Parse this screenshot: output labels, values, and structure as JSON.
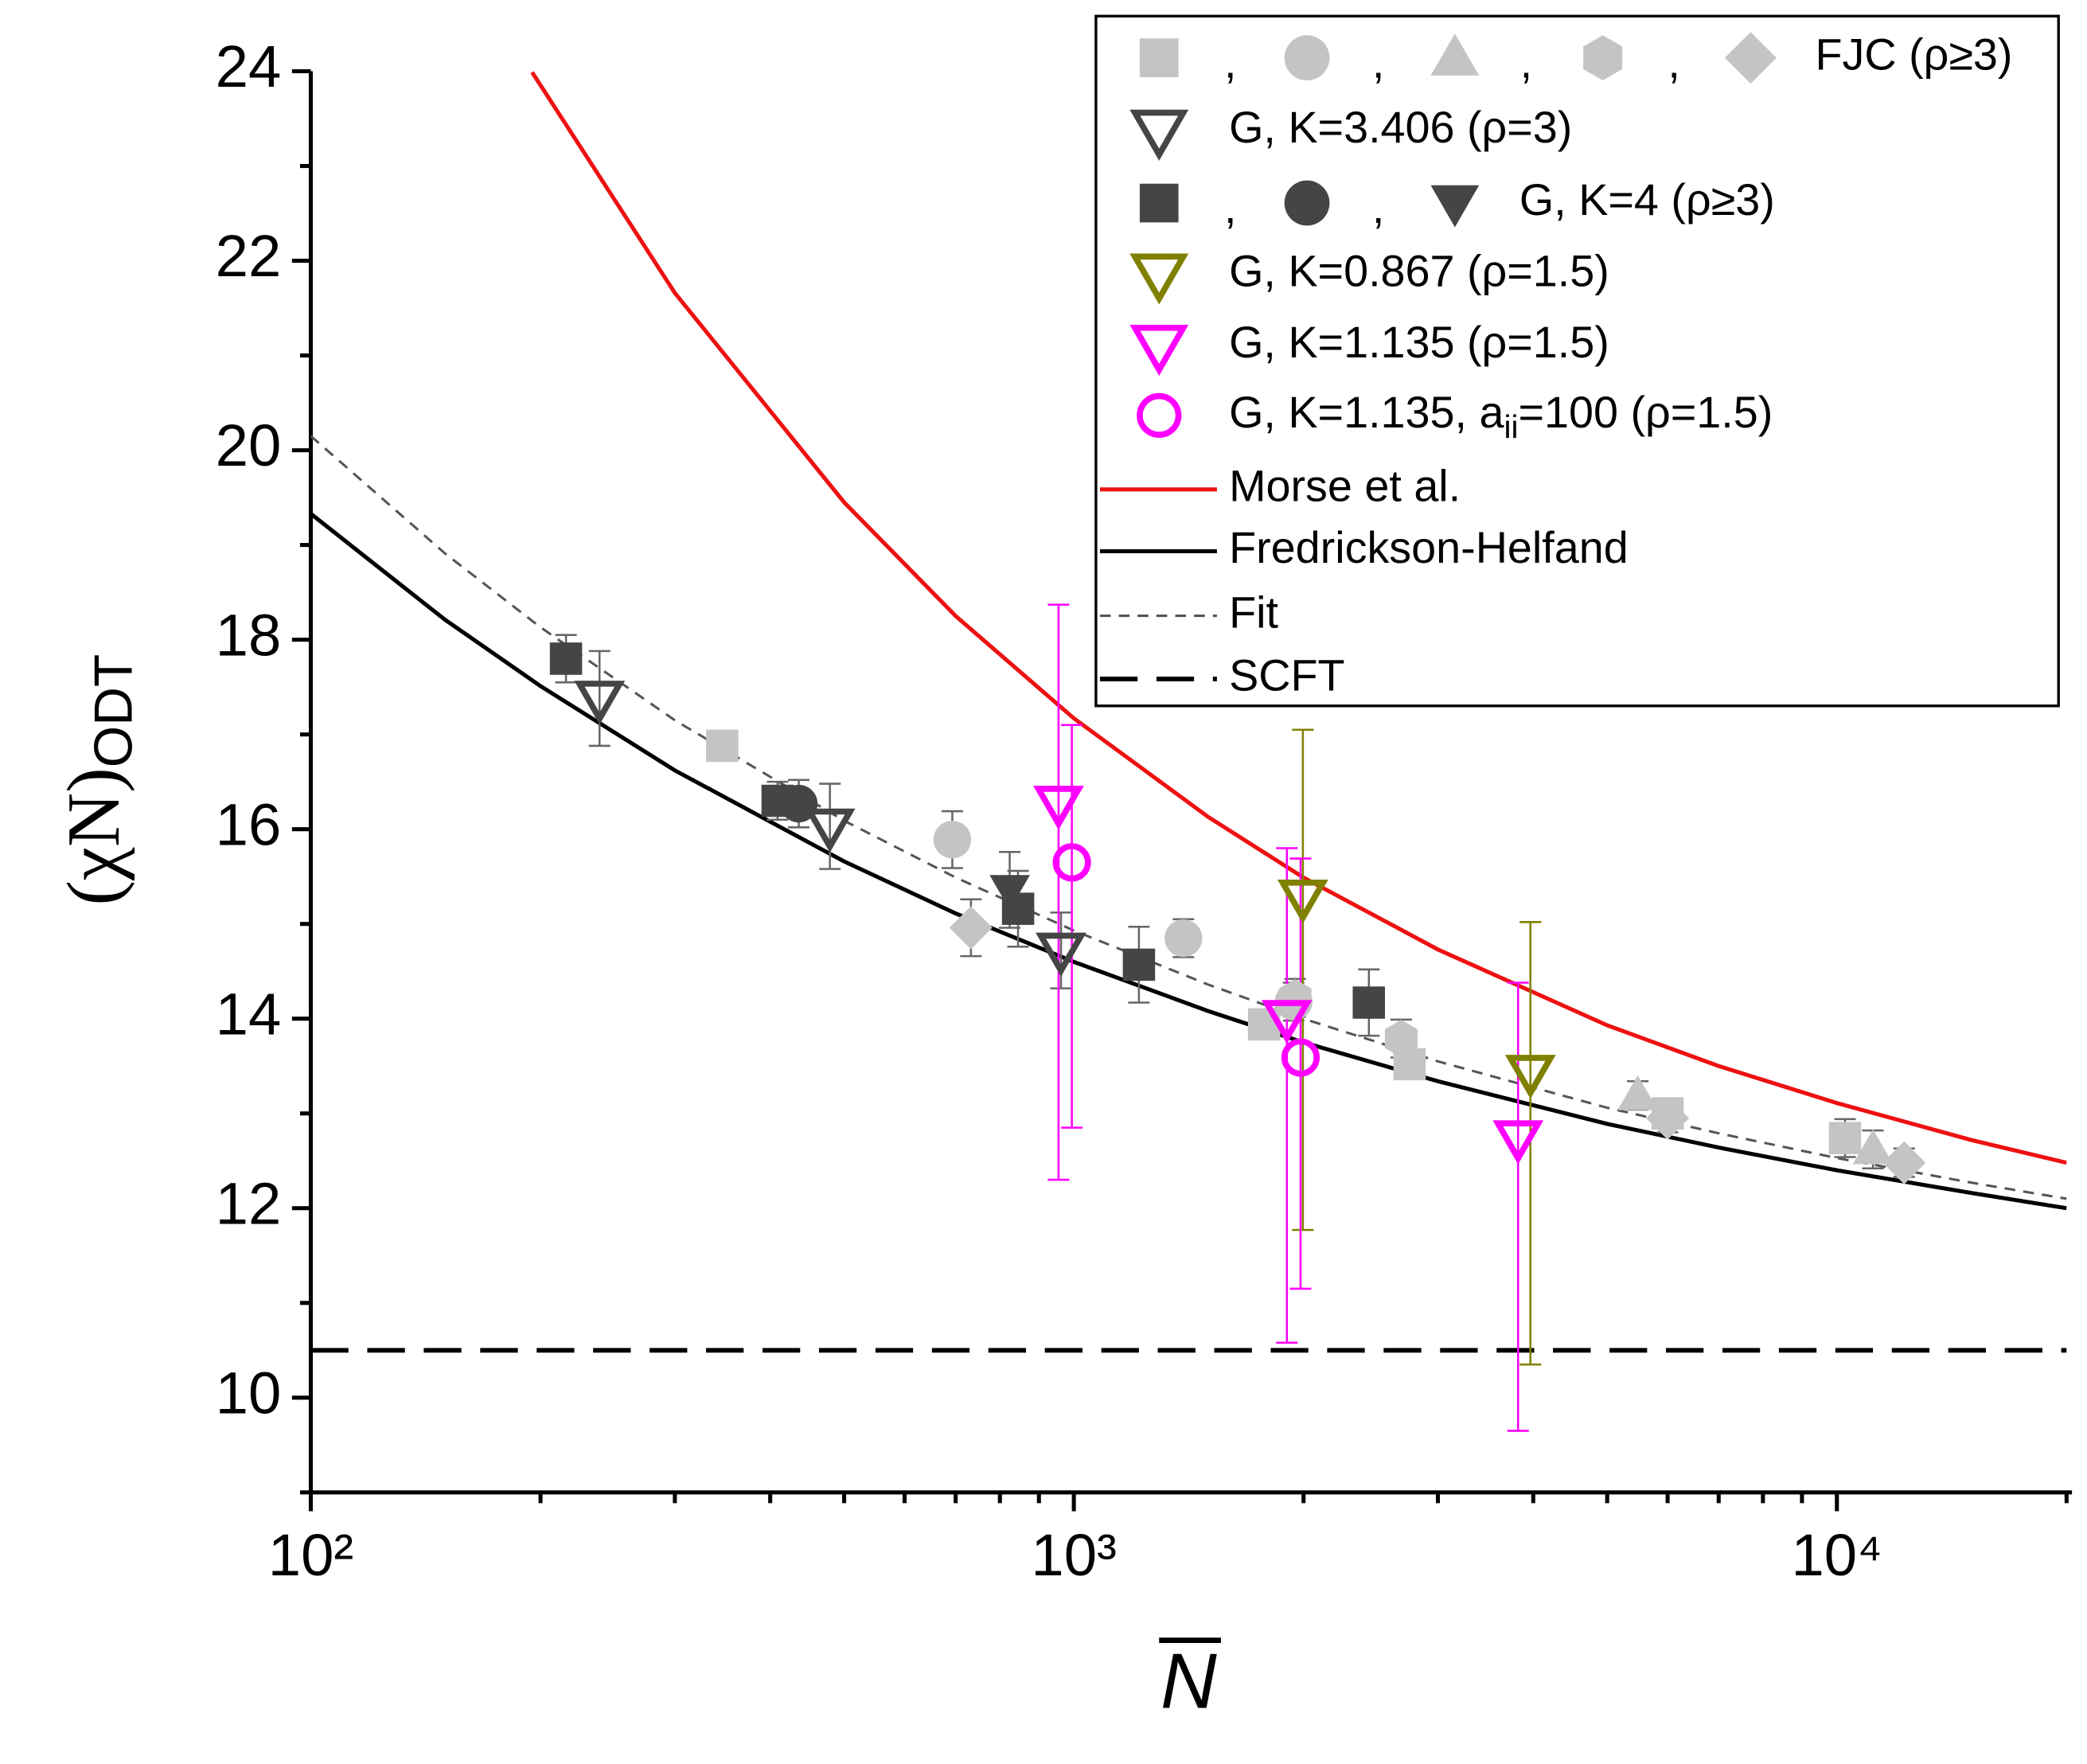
{
  "chart_data": {
    "type": "scatter",
    "xlabel": "N",
    "ylabel": "(χN)",
    "ylabel_sub": "ODT",
    "xlog": true,
    "xlim": [
      100,
      20000
    ],
    "ylim": [
      9,
      24
    ],
    "xticks": [
      {
        "value": 100,
        "label": "10²"
      },
      {
        "value": 1000,
        "label": "10³"
      },
      {
        "value": 10000,
        "label": "10⁴"
      }
    ],
    "yticks": [
      10,
      12,
      14,
      16,
      18,
      20,
      22,
      24
    ],
    "separator": ",",
    "series": [
      {
        "marker": "square",
        "color": "#c4c4c4",
        "open": false,
        "x": [
          346,
          1776,
          2754,
          6000,
          10250
        ],
        "values": [
          16.88,
          13.94,
          13.52,
          13.0,
          12.74
        ],
        "errors": [
          0.1,
          0.15,
          0.15,
          0.15,
          0.2
        ]
      },
      {
        "marker": "circle",
        "color": "#c4c4c4",
        "open": false,
        "x": [
          693,
          1392,
          1941
        ],
        "values": [
          15.89,
          14.85,
          14.18
        ],
        "errors": [
          0.3,
          0.2,
          0.2
        ]
      },
      {
        "marker": "triangle-up",
        "color": "#c4c4c4",
        "open": false,
        "x": [
          5483,
          11150
        ],
        "values": [
          13.19,
          12.62
        ],
        "errors": [
          0.15,
          0.2
        ]
      },
      {
        "marker": "hexagon",
        "color": "#c4c4c4",
        "open": false,
        "x": [
          1950,
          2685
        ],
        "values": [
          14.22,
          13.79
        ],
        "errors": [
          0.2,
          0.2
        ]
      },
      {
        "marker": "diamond",
        "color": "#c4c4c4",
        "open": false,
        "x": [
          733,
          6000,
          12250
        ],
        "values": [
          14.96,
          12.95,
          12.48
        ],
        "errors": [
          0.3,
          0.15,
          0.15
        ]
      },
      {
        "marker": "triangle-down",
        "color": "#454545",
        "open": true,
        "x": [
          239,
          479,
          962
        ],
        "values": [
          17.38,
          16.03,
          14.72
        ],
        "errors": [
          0.5,
          0.45,
          0.4
        ]
      },
      {
        "marker": "square",
        "color": "#454545",
        "open": false,
        "x": [
          216,
          409,
          845,
          1217,
          2436
        ],
        "values": [
          17.8,
          16.3,
          15.16,
          14.57,
          14.17
        ],
        "errors": [
          0.25,
          0.2,
          0.4,
          0.4,
          0.35
        ]
      },
      {
        "marker": "circle",
        "color": "#454545",
        "open": false,
        "x": [
          436
        ],
        "values": [
          16.27
        ],
        "errors": [
          0.25
        ]
      },
      {
        "marker": "triangle-down",
        "color": "#454545",
        "open": false,
        "x": [
          824
        ],
        "values": [
          15.36
        ],
        "errors": [
          0.4
        ]
      },
      {
        "marker": "triangle-down",
        "color": "#808000",
        "open": true,
        "x": [
          1996,
          3966
        ],
        "values": [
          15.28,
          13.43
        ],
        "errors": [
          [
            3.51,
            1.77
          ],
          [
            3.08,
            1.59
          ]
        ]
      },
      {
        "marker": "triangle-down",
        "color": "#ff00ff",
        "open": true,
        "x": [
          955,
          1902,
          3821
        ],
        "values": [
          16.27,
          14.01,
          12.74
        ],
        "errors": [
          [
            3.97,
            2.1
          ],
          [
            3.43,
            1.79
          ],
          [
            3.09,
            1.64
          ]
        ]
      },
      {
        "marker": "circle",
        "color": "#ff00ff",
        "open": true,
        "x": [
          994,
          1982
        ],
        "values": [
          15.65,
          13.59
        ],
        "errors": [
          [
            2.8,
            1.45
          ],
          [
            2.44,
            2.1
          ]
        ]
      }
    ],
    "lines": [
      {
        "name": "Morse et al.",
        "color": "#ee1111",
        "style": "solid",
        "x": [
          195,
          300,
          500,
          700,
          1000,
          1500,
          2000,
          3000,
          5000,
          7000,
          10000,
          15000,
          20000
        ],
        "values": [
          23.99,
          21.66,
          19.45,
          18.25,
          17.17,
          16.13,
          15.49,
          14.73,
          13.93,
          13.5,
          13.11,
          12.72,
          12.48
        ]
      },
      {
        "name": "Fredrickson-Helfand",
        "color": "#000000",
        "style": "solid",
        "x": [
          100,
          150,
          200,
          300,
          500,
          700,
          1000,
          1500,
          2000,
          3000,
          5000,
          7000,
          10000,
          15000,
          20000
        ],
        "values": [
          19.33,
          18.21,
          17.51,
          16.62,
          15.66,
          15.11,
          14.6,
          14.08,
          13.75,
          13.34,
          12.89,
          12.64,
          12.4,
          12.16,
          12.0
        ]
      },
      {
        "name": "Fit",
        "color": "#555555",
        "style": "dashed-thin",
        "x": [
          100,
          150,
          200,
          300,
          500,
          700,
          1000,
          1500,
          2000,
          3000,
          5000,
          7000,
          10000,
          15000,
          20000
        ],
        "values": [
          20.15,
          18.91,
          18.13,
          17.15,
          16.09,
          15.49,
          14.93,
          14.36,
          14.0,
          13.55,
          13.06,
          12.79,
          12.53,
          12.27,
          12.1
        ]
      },
      {
        "name": "SCFT",
        "color": "#000000",
        "style": "dashed-thick",
        "x": [
          100,
          20000
        ],
        "values": [
          10.5,
          10.5
        ]
      }
    ],
    "legend": [
      {
        "series": [
          0,
          1,
          2,
          3,
          4
        ],
        "label": [
          "FJC (ρ≥3)"
        ]
      },
      {
        "series": [
          5
        ],
        "label": [
          "G, K=3.406 (ρ=3)"
        ]
      },
      {
        "series": [
          6,
          7,
          8
        ],
        "label": [
          "G, K=4 (ρ≥3)"
        ]
      },
      {
        "series": [
          9
        ],
        "label": [
          "G, K=0.867 (ρ=1.5)"
        ]
      },
      {
        "series": [
          10
        ],
        "label": [
          "G, K=1.135 (ρ=1.5)"
        ]
      },
      {
        "series": [
          11
        ],
        "label": [
          "G, K=1.135, a",
          "ii",
          "=100 (ρ=1.5)"
        ]
      },
      {
        "line": 0
      },
      {
        "line": 1
      },
      {
        "line": 2
      },
      {
        "line": 3
      }
    ]
  }
}
